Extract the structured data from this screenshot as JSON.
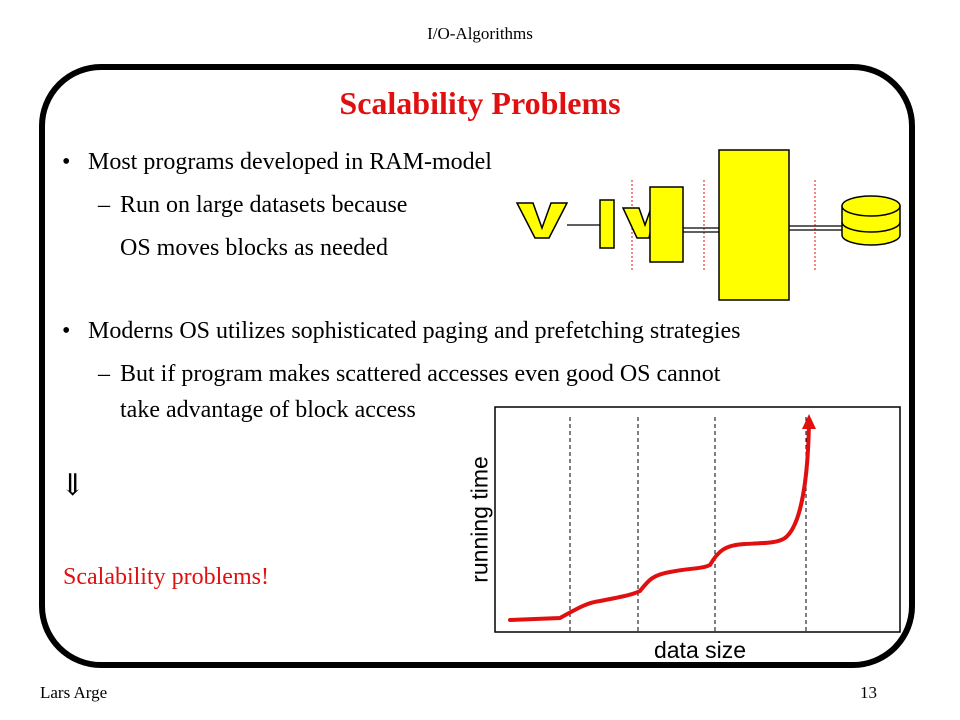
{
  "header": {
    "title": "I/O-Algorithms"
  },
  "slide": {
    "title": "Scalability Problems",
    "bullets": [
      {
        "text": "Most programs developed in RAM-model",
        "sub": [
          "Run on large datasets because",
          "OS moves blocks as needed"
        ]
      },
      {
        "text": "Moderns OS utilizes sophisticated paging and prefetching strategies",
        "sub": [
          "But if program makes scattered accesses even good OS cannot",
          "take advantage of block access"
        ]
      }
    ],
    "bullet_symbol": "•",
    "dash_symbol": "–",
    "arrow_symbol": "⇓",
    "conclusion": "Scalability problems!",
    "colors": {
      "title": "#e01010",
      "conclusion": "#e01010",
      "hierarchy_fill": "#ffff00",
      "curve": "#e01010"
    }
  },
  "chart_data": {
    "type": "line",
    "xlabel": "data size",
    "ylabel": "running time",
    "axes_box": true,
    "dashed_vertical_markers": 4,
    "series": [
      {
        "shape": "staircase",
        "ends_with_arrow": true
      }
    ]
  },
  "footer": {
    "author": "Lars Arge",
    "page": "13"
  }
}
